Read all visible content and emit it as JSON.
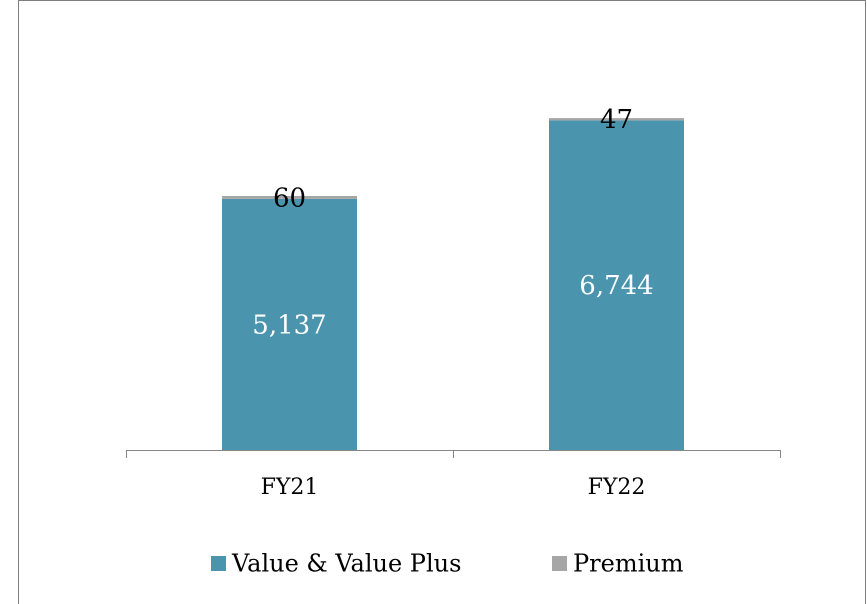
{
  "chart_data": {
    "type": "stacked_bar",
    "categories": [
      "FY21",
      "FY22"
    ],
    "series": [
      {
        "name": "Value & Value Plus",
        "color": "#4a94ae",
        "values": [
          5137,
          6744
        ],
        "value_labels": [
          "5,137",
          "6,744"
        ]
      },
      {
        "name": "Premium",
        "color": "#a6a6a6",
        "values": [
          60,
          47
        ]
      }
    ],
    "ylim": [
      0,
      8000
    ]
  }
}
